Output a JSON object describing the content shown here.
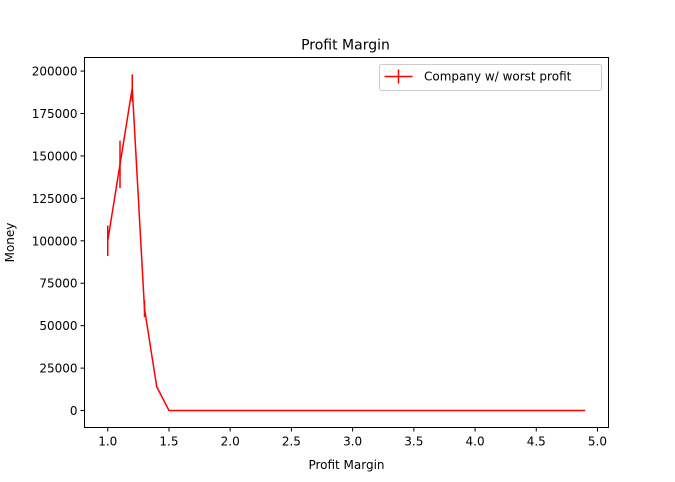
{
  "chart_data": {
    "type": "line",
    "title": "Profit Margin",
    "xlabel": "Profit Margin",
    "ylabel": "Money",
    "xlim": [
      0.81,
      5.09
    ],
    "ylim": [
      -10000,
      208000
    ],
    "xticks": [
      1.0,
      1.5,
      2.0,
      2.5,
      3.0,
      3.5,
      4.0,
      4.5,
      5.0
    ],
    "xtick_labels": [
      "1.0",
      "1.5",
      "2.0",
      "2.5",
      "3.0",
      "3.5",
      "4.0",
      "4.5",
      "5.0"
    ],
    "yticks": [
      0,
      25000,
      50000,
      75000,
      100000,
      125000,
      150000,
      175000,
      200000
    ],
    "ytick_labels": [
      "0",
      "25000",
      "50000",
      "75000",
      "100000",
      "125000",
      "150000",
      "175000",
      "200000"
    ],
    "grid": false,
    "legend": {
      "placement": "top-right"
    },
    "series": [
      {
        "name": "Company w/ worst profit",
        "color": "#ff0000",
        "x": [
          1.0,
          1.1,
          1.2,
          1.3,
          1.4,
          1.5,
          1.6,
          1.7,
          1.8,
          1.9,
          2.0,
          2.1,
          2.2,
          2.3,
          2.4,
          2.5,
          2.6,
          2.7,
          2.8,
          2.9,
          3.0,
          3.1,
          3.2,
          3.3,
          3.4,
          3.5,
          3.6,
          3.7,
          3.8,
          3.9,
          4.0,
          4.1,
          4.2,
          4.3,
          4.4,
          4.5,
          4.6,
          4.7,
          4.8,
          4.9
        ],
        "y": [
          100000,
          145000,
          190000,
          60000,
          14000,
          0,
          0,
          0,
          0,
          0,
          0,
          0,
          0,
          0,
          0,
          0,
          0,
          0,
          0,
          0,
          0,
          0,
          0,
          0,
          0,
          0,
          0,
          0,
          0,
          0,
          0,
          0,
          0,
          0,
          0,
          0,
          0,
          0,
          0,
          0
        ],
        "yerr": [
          9000,
          14000,
          8000,
          5000,
          500,
          0,
          0,
          0,
          0,
          0,
          0,
          0,
          0,
          0,
          0,
          0,
          0,
          0,
          0,
          0,
          0,
          0,
          0,
          0,
          0,
          0,
          0,
          0,
          0,
          0,
          0,
          0,
          0,
          0,
          0,
          0,
          0,
          0,
          0,
          0
        ]
      }
    ]
  }
}
